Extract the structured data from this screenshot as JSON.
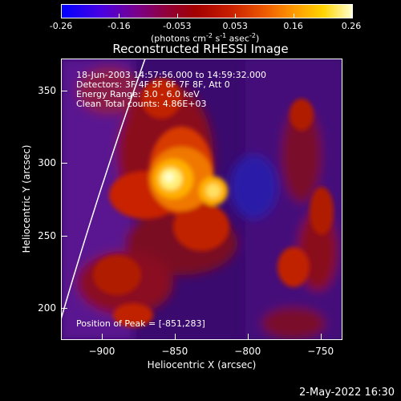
{
  "colorbar": {
    "ticks": [
      "-0.26",
      "-0.16",
      "-0.053",
      "0.053",
      "0.16",
      "0.26"
    ],
    "unit_prefix": "(photons cm",
    "unit_exp1": "-2",
    "unit_mid": " s",
    "unit_exp2": "-1",
    "unit_mid2": " asec",
    "unit_exp3": "-2",
    "unit_suffix": ")"
  },
  "plot": {
    "title": "Reconstructed RHESSI Image",
    "xlabel": "Heliocentric X (arcsec)",
    "ylabel": "Heliocentric Y (arcsec)",
    "xticks": [
      "−900",
      "−850",
      "−800",
      "−750"
    ],
    "yticks": [
      "350",
      "300",
      "250",
      "200"
    ],
    "xlim": [
      -928,
      -735
    ],
    "ylim": [
      178,
      372
    ]
  },
  "annotations": {
    "time_range": "18-Jun-2003 14:57:56.000 to 14:59:32.000",
    "detectors": "Detectors: 3F 4F 5F 6F 7F 8F, Att 0",
    "energy": "Energy Range: 3.0 - 6.0 keV",
    "clean": "Clean     Total counts: 4.86E+03",
    "peak": "Position of Peak = [-851,283]"
  },
  "footer": {
    "date": "2-May-2022 16:30"
  },
  "peak": {
    "x": -851,
    "y": 283
  }
}
